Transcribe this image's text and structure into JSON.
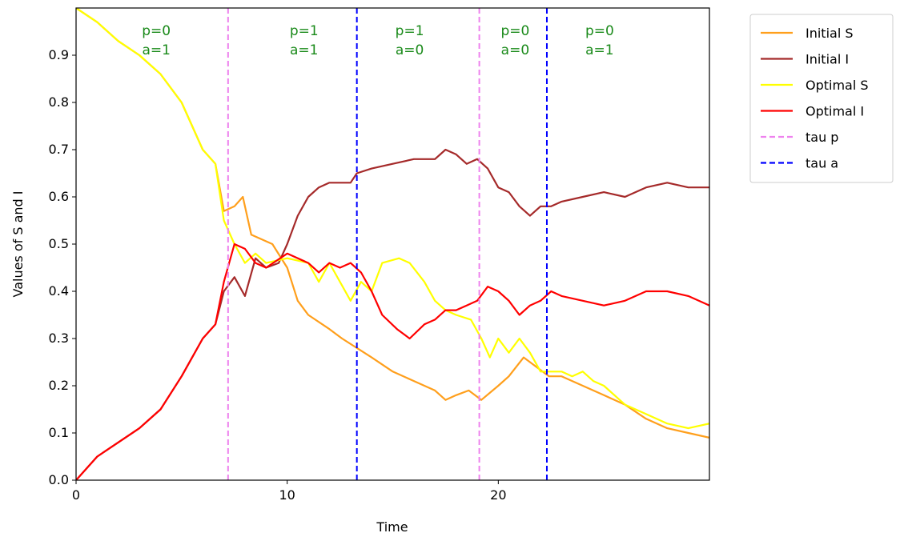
{
  "chart_data": {
    "type": "line",
    "xlabel": "Time",
    "ylabel": "Values of S and I",
    "xlim": [
      0,
      30
    ],
    "ylim": [
      0,
      1
    ],
    "x_ticks": [
      "0",
      "10",
      "20"
    ],
    "x_tick_values": [
      0,
      10,
      20
    ],
    "y_ticks": [
      "0.0",
      "0.1",
      "0.2",
      "0.3",
      "0.4",
      "0.5",
      "0.6",
      "0.7",
      "0.8",
      "0.9"
    ],
    "y_tick_values": [
      0,
      0.1,
      0.2,
      0.3,
      0.4,
      0.5,
      0.6,
      0.7,
      0.8,
      0.9
    ],
    "grid": false,
    "legend_position": "outside-top-right",
    "series": [
      {
        "name": "Initial S",
        "color": "#ff9f1c",
        "style": "solid",
        "points": [
          [
            0,
            1.0
          ],
          [
            1,
            0.97
          ],
          [
            2,
            0.93
          ],
          [
            3,
            0.9
          ],
          [
            4,
            0.86
          ],
          [
            5,
            0.8
          ],
          [
            6,
            0.7
          ],
          [
            6.6,
            0.67
          ],
          [
            7,
            0.57
          ],
          [
            7.5,
            0.58
          ],
          [
            7.9,
            0.6
          ],
          [
            8.3,
            0.52
          ],
          [
            8.8,
            0.51
          ],
          [
            9.3,
            0.5
          ],
          [
            10,
            0.45
          ],
          [
            10.5,
            0.38
          ],
          [
            11,
            0.35
          ],
          [
            12,
            0.32
          ],
          [
            12.6,
            0.3
          ],
          [
            13.3,
            0.28
          ],
          [
            14,
            0.26
          ],
          [
            15,
            0.23
          ],
          [
            16,
            0.21
          ],
          [
            17,
            0.19
          ],
          [
            17.5,
            0.17
          ],
          [
            18,
            0.18
          ],
          [
            18.6,
            0.19
          ],
          [
            19.2,
            0.17
          ],
          [
            20,
            0.2
          ],
          [
            20.5,
            0.22
          ],
          [
            21.2,
            0.26
          ],
          [
            21.8,
            0.24
          ],
          [
            22.4,
            0.22
          ],
          [
            23,
            0.22
          ],
          [
            24,
            0.2
          ],
          [
            25,
            0.18
          ],
          [
            26,
            0.16
          ],
          [
            27,
            0.13
          ],
          [
            28,
            0.11
          ],
          [
            29,
            0.1
          ],
          [
            30,
            0.09
          ]
        ]
      },
      {
        "name": "Initial I",
        "color": "#a52a2a",
        "style": "solid",
        "points": [
          [
            0,
            0.0
          ],
          [
            1,
            0.05
          ],
          [
            2,
            0.08
          ],
          [
            3,
            0.11
          ],
          [
            4,
            0.15
          ],
          [
            5,
            0.22
          ],
          [
            6,
            0.3
          ],
          [
            6.6,
            0.33
          ],
          [
            7,
            0.4
          ],
          [
            7.5,
            0.43
          ],
          [
            8,
            0.39
          ],
          [
            8.5,
            0.47
          ],
          [
            9,
            0.45
          ],
          [
            9.6,
            0.46
          ],
          [
            10,
            0.5
          ],
          [
            10.5,
            0.56
          ],
          [
            11,
            0.6
          ],
          [
            11.5,
            0.62
          ],
          [
            12,
            0.63
          ],
          [
            13,
            0.63
          ],
          [
            13.3,
            0.65
          ],
          [
            14,
            0.66
          ],
          [
            15,
            0.67
          ],
          [
            16,
            0.68
          ],
          [
            17,
            0.68
          ],
          [
            17.5,
            0.7
          ],
          [
            18,
            0.69
          ],
          [
            18.5,
            0.67
          ],
          [
            19,
            0.68
          ],
          [
            19.5,
            0.66
          ],
          [
            20,
            0.62
          ],
          [
            20.5,
            0.61
          ],
          [
            21,
            0.58
          ],
          [
            21.5,
            0.56
          ],
          [
            22,
            0.58
          ],
          [
            22.5,
            0.58
          ],
          [
            23,
            0.59
          ],
          [
            24,
            0.6
          ],
          [
            25,
            0.61
          ],
          [
            26,
            0.6
          ],
          [
            27,
            0.62
          ],
          [
            28,
            0.63
          ],
          [
            29,
            0.62
          ],
          [
            30,
            0.62
          ]
        ]
      },
      {
        "name": "Optimal S",
        "color": "#ffff00",
        "style": "solid",
        "points": [
          [
            0,
            1.0
          ],
          [
            1,
            0.97
          ],
          [
            2,
            0.93
          ],
          [
            3,
            0.9
          ],
          [
            4,
            0.86
          ],
          [
            5,
            0.8
          ],
          [
            6,
            0.7
          ],
          [
            6.6,
            0.67
          ],
          [
            7,
            0.55
          ],
          [
            7.5,
            0.5
          ],
          [
            8,
            0.46
          ],
          [
            8.5,
            0.48
          ],
          [
            9,
            0.46
          ],
          [
            10,
            0.47
          ],
          [
            11,
            0.46
          ],
          [
            11.5,
            0.42
          ],
          [
            12,
            0.46
          ],
          [
            12.5,
            0.42
          ],
          [
            13,
            0.38
          ],
          [
            13.5,
            0.42
          ],
          [
            14,
            0.4
          ],
          [
            14.5,
            0.46
          ],
          [
            15.3,
            0.47
          ],
          [
            15.8,
            0.46
          ],
          [
            16.5,
            0.42
          ],
          [
            17,
            0.38
          ],
          [
            17.5,
            0.36
          ],
          [
            18,
            0.35
          ],
          [
            18.7,
            0.34
          ],
          [
            19.2,
            0.3
          ],
          [
            19.6,
            0.26
          ],
          [
            20,
            0.3
          ],
          [
            20.5,
            0.27
          ],
          [
            21,
            0.3
          ],
          [
            21.5,
            0.27
          ],
          [
            22,
            0.23
          ],
          [
            22.5,
            0.23
          ],
          [
            23,
            0.23
          ],
          [
            23.5,
            0.22
          ],
          [
            24,
            0.23
          ],
          [
            24.5,
            0.21
          ],
          [
            25,
            0.2
          ],
          [
            26,
            0.16
          ],
          [
            27,
            0.14
          ],
          [
            28,
            0.12
          ],
          [
            29,
            0.11
          ],
          [
            30,
            0.12
          ]
        ]
      },
      {
        "name": "Optimal I",
        "color": "#ff0000",
        "style": "solid",
        "points": [
          [
            0,
            0.0
          ],
          [
            1,
            0.05
          ],
          [
            2,
            0.08
          ],
          [
            3,
            0.11
          ],
          [
            4,
            0.15
          ],
          [
            5,
            0.22
          ],
          [
            6,
            0.3
          ],
          [
            6.6,
            0.33
          ],
          [
            7,
            0.42
          ],
          [
            7.5,
            0.5
          ],
          [
            8,
            0.49
          ],
          [
            8.5,
            0.46
          ],
          [
            9,
            0.45
          ],
          [
            10,
            0.48
          ],
          [
            11,
            0.46
          ],
          [
            11.5,
            0.44
          ],
          [
            12,
            0.46
          ],
          [
            12.5,
            0.45
          ],
          [
            13,
            0.46
          ],
          [
            13.5,
            0.44
          ],
          [
            14,
            0.4
          ],
          [
            14.5,
            0.35
          ],
          [
            15.2,
            0.32
          ],
          [
            15.8,
            0.3
          ],
          [
            16.5,
            0.33
          ],
          [
            17,
            0.34
          ],
          [
            17.5,
            0.36
          ],
          [
            18,
            0.36
          ],
          [
            18.5,
            0.37
          ],
          [
            19,
            0.38
          ],
          [
            19.5,
            0.41
          ],
          [
            20,
            0.4
          ],
          [
            20.5,
            0.38
          ],
          [
            21,
            0.35
          ],
          [
            21.5,
            0.37
          ],
          [
            22,
            0.38
          ],
          [
            22.5,
            0.4
          ],
          [
            23,
            0.39
          ],
          [
            24,
            0.38
          ],
          [
            25,
            0.37
          ],
          [
            26,
            0.38
          ],
          [
            27,
            0.4
          ],
          [
            28,
            0.4
          ],
          [
            29,
            0.39
          ],
          [
            30,
            0.37
          ]
        ]
      }
    ],
    "vlines": [
      {
        "name": "tau p",
        "color": "#ee82ee",
        "style": "dashed",
        "x": [
          7.2,
          19.1
        ]
      },
      {
        "name": "tau a",
        "color": "#0000ff",
        "style": "dashed",
        "x": [
          13.3,
          22.3
        ]
      }
    ],
    "annotations": [
      {
        "x": 3.8,
        "lines": [
          "p=0",
          "a=1"
        ]
      },
      {
        "x": 10.8,
        "lines": [
          "p=1",
          "a=1"
        ]
      },
      {
        "x": 15.8,
        "lines": [
          "p=1",
          "a=0"
        ]
      },
      {
        "x": 20.8,
        "lines": [
          "p=0",
          "a=0"
        ]
      },
      {
        "x": 24.8,
        "lines": [
          "p=0",
          "a=1"
        ]
      }
    ],
    "annotation_color": "#1a8a1a",
    "legend": [
      {
        "label": "Initial S",
        "color": "#ff9f1c",
        "style": "solid"
      },
      {
        "label": "Initial I",
        "color": "#a52a2a",
        "style": "solid"
      },
      {
        "label": "Optimal S",
        "color": "#ffff00",
        "style": "solid"
      },
      {
        "label": "Optimal I",
        "color": "#ff0000",
        "style": "solid"
      },
      {
        "label": "tau p",
        "color": "#ee82ee",
        "style": "dashed"
      },
      {
        "label": "tau a",
        "color": "#0000ff",
        "style": "dashed"
      }
    ]
  }
}
